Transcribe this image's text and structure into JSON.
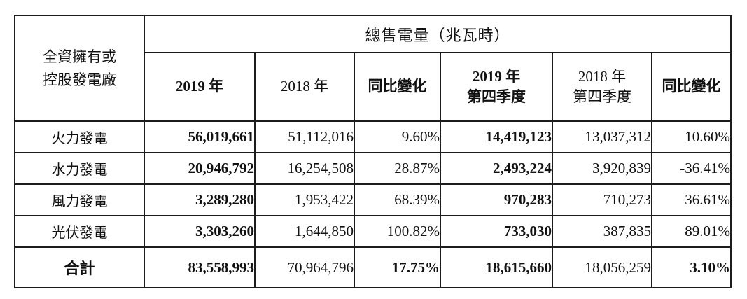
{
  "table": {
    "corner_header": {
      "line1": "全資擁有或",
      "line2": "控股發電廠"
    },
    "group_header": "總售電量（兆瓦時）",
    "col_headers": [
      {
        "line1": "2019 年",
        "line2": ""
      },
      {
        "line1": "2018 年",
        "line2": ""
      },
      {
        "line1": "同比變化",
        "line2": ""
      },
      {
        "line1": "2019 年",
        "line2": "第四季度"
      },
      {
        "line1": "2018 年",
        "line2": "第四季度"
      },
      {
        "line1": "同比變化",
        "line2": ""
      }
    ],
    "rows": [
      {
        "label": "火力發電",
        "cells": [
          "56,019,661",
          "51,112,016",
          "9.60%",
          "14,419,123",
          "13,037,312",
          "10.60%"
        ]
      },
      {
        "label": "水力發電",
        "cells": [
          "20,946,792",
          "16,254,508",
          "28.87%",
          "2,493,224",
          "3,920,839",
          "-36.41%"
        ]
      },
      {
        "label": "風力發電",
        "cells": [
          "3,289,280",
          "1,953,422",
          "68.39%",
          "970,283",
          "710,273",
          "36.61%"
        ]
      },
      {
        "label": "光伏發電",
        "cells": [
          "3,303,260",
          "1,644,850",
          "100.82%",
          "733,030",
          "387,835",
          "89.01%"
        ]
      }
    ],
    "total_row": {
      "label": "合計",
      "cells": [
        "83,558,993",
        "70,964,796",
        "17.75%",
        "18,615,660",
        "18,056,259",
        "3.10%"
      ]
    }
  }
}
